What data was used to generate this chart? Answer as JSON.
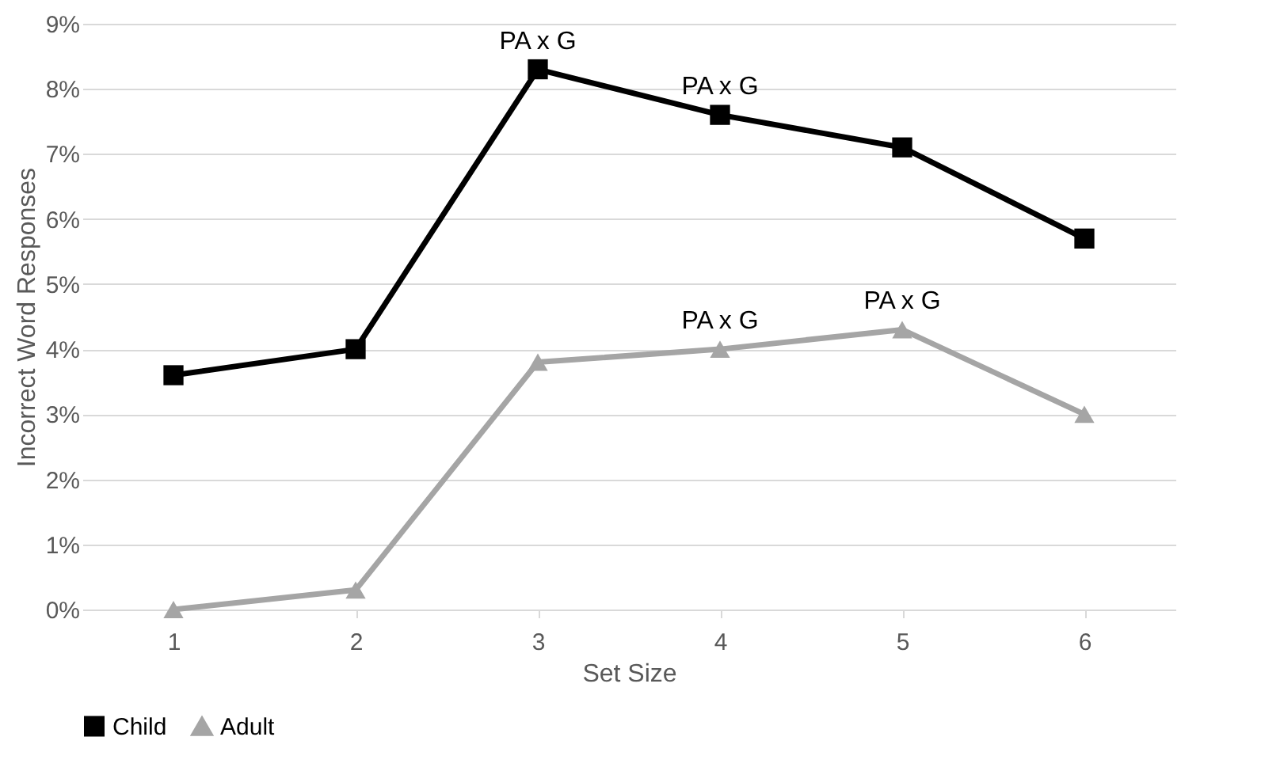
{
  "chart_data": {
    "type": "line",
    "xlabel": "Set Size",
    "ylabel": "Incorrect Word Responses",
    "categories": [
      "1",
      "2",
      "3",
      "4",
      "5",
      "6"
    ],
    "series": [
      {
        "name": "Child",
        "color": "#000000",
        "marker": "square",
        "values": [
          3.6,
          4.0,
          8.3,
          7.6,
          7.1,
          5.7
        ]
      },
      {
        "name": "Adult",
        "color": "#a5a5a5",
        "marker": "triangle",
        "values": [
          0,
          0.3,
          3.8,
          4.0,
          4.3,
          3.0
        ]
      }
    ],
    "ylim": [
      0,
      9
    ],
    "yticks": [
      {
        "value": 0,
        "label": "0%"
      },
      {
        "value": 1,
        "label": "1%"
      },
      {
        "value": 2,
        "label": "2%"
      },
      {
        "value": 3,
        "label": "3%"
      },
      {
        "value": 4,
        "label": "4%"
      },
      {
        "value": 5,
        "label": "5%"
      },
      {
        "value": 6,
        "label": "6%"
      },
      {
        "value": 7,
        "label": "7%"
      },
      {
        "value": 8,
        "label": "8%"
      },
      {
        "value": 9,
        "label": "9%"
      }
    ],
    "annotations": [
      {
        "text": "PA x G",
        "x": "3",
        "y": 8.3
      },
      {
        "text": "PA x G",
        "x": "4",
        "y": 7.6
      },
      {
        "text": "PA x G",
        "x": "4",
        "y": 4.0
      },
      {
        "text": "PA x G",
        "x": "5",
        "y": 4.3
      }
    ],
    "grid": "y",
    "legend": "bottom",
    "line_style": "solid"
  }
}
